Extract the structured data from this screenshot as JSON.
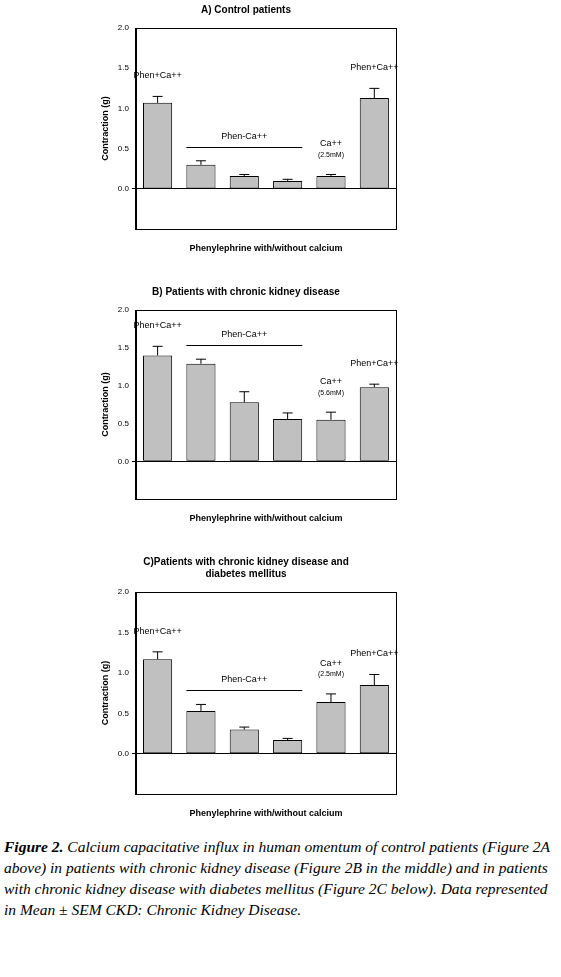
{
  "chart_data": [
    {
      "type": "bar",
      "title": "A) Control patients",
      "categories": [
        null,
        null,
        null,
        null,
        null,
        null
      ],
      "values": [
        1.07,
        0.3,
        0.16,
        0.1,
        0.16,
        1.13
      ],
      "errors": [
        0.08,
        0.05,
        0.02,
        0.02,
        0.02,
        0.12
      ],
      "groups": [
        "Phen+Ca++",
        "Phen-Ca++",
        "Phen-Ca++",
        "Phen-Ca++",
        [
          "Ca++",
          "(2.5mM)"
        ],
        "Phen+Ca++"
      ],
      "color": "#c0c0c0",
      "x_label": "Phenylephrine with/without calcium",
      "y_label": "Contraction (g)",
      "ylim": [
        -0.5,
        2.0
      ],
      "yticks": [
        {
          "value": 0,
          "label": "0.0"
        },
        {
          "value": 0.5,
          "label": "0.5"
        },
        {
          "value": 1,
          "label": "1.0"
        },
        {
          "value": 1.5,
          "label": "1.5"
        },
        {
          "value": 2,
          "label": "2.0"
        }
      ],
      "grid": false,
      "tick_labels": "y",
      "data_labels": false
    },
    {
      "type": "bar",
      "title": "B) Patients with chronic kidney disease",
      "categories": [
        null,
        null,
        null,
        null,
        null,
        null
      ],
      "values": [
        1.4,
        1.29,
        0.78,
        0.56,
        0.55,
        0.98
      ],
      "errors": [
        0.12,
        0.06,
        0.14,
        0.08,
        0.1,
        0.04
      ],
      "groups": [
        "Phen+Ca++",
        "Phen-Ca++",
        "Phen-Ca++",
        "Phen-Ca++",
        [
          "Ca++",
          "(5.6mM)"
        ],
        "Phen+Ca++"
      ],
      "color": "#c0c0c0",
      "x_label": "Phenylephrine with/without calcium",
      "y_label": "Contraction (g)",
      "ylim": [
        -0.5,
        2.0
      ],
      "yticks": [
        {
          "value": 0,
          "label": "0.0"
        },
        {
          "value": 0.5,
          "label": "0.5"
        },
        {
          "value": 1,
          "label": "1.0"
        },
        {
          "value": 1.5,
          "label": "1.5"
        },
        {
          "value": 2,
          "label": "2.0"
        }
      ],
      "grid": false,
      "tick_labels": "y",
      "data_labels": false
    },
    {
      "type": "bar",
      "title": [
        "C)Patients with chronic kidney disease and",
        "diabetes mellitus"
      ],
      "categories": [
        null,
        null,
        null,
        null,
        null,
        null
      ],
      "values": [
        1.17,
        0.53,
        0.3,
        0.17,
        0.64,
        0.85
      ],
      "errors": [
        0.09,
        0.08,
        0.03,
        0.02,
        0.1,
        0.13
      ],
      "groups": [
        "Phen+Ca++",
        "Phen-Ca++",
        "Phen-Ca++",
        "Phen-Ca++",
        [
          "Ca++",
          "(2.5mM)"
        ],
        "Phen+Ca++"
      ],
      "color": "#c0c0c0",
      "x_label": "Phenylephrine with/without calcium",
      "y_label": "Contraction (g)",
      "ylim": [
        -0.5,
        2.0
      ],
      "yticks": [
        {
          "value": 0,
          "label": "0.0"
        },
        {
          "value": 0.5,
          "label": "0.5"
        },
        {
          "value": 1,
          "label": "1.0"
        },
        {
          "value": 1.5,
          "label": "1.5"
        },
        {
          "value": 2,
          "label": "2.0"
        }
      ],
      "grid": false,
      "tick_labels": "y",
      "data_labels": false
    }
  ],
  "caption": {
    "label": "Figure 2.",
    "text": "Calcium capacitative influx in human omentum of control patients (Figure 2A above) in patients with chronic kidney disease (Figure 2B in the middle) and in patients with chronic kidney disease with diabetes mellitus (Figure 2C below). Data represented in Mean ± SEM CKD: Chronic Kidney Disease."
  }
}
